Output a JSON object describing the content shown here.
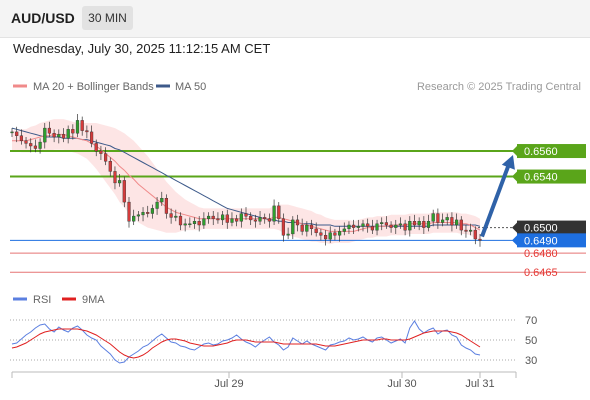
{
  "header": {
    "pair": "AUD/USD",
    "timeframe": "30 MIN"
  },
  "datetime": "Wednesday, July 30, 2025 11:12:15 AM CET",
  "legend": {
    "ma20_label": "MA 20 + Bollinger Bands",
    "ma50_label": "MA 50",
    "copyright": "Research © 2025 Trading Central",
    "rsi_label": "RSI",
    "rsi_ma_label": "9MA"
  },
  "colors": {
    "ma20": "#f08a8a",
    "ma50": "#3d5a8a",
    "band": "#fde0e0",
    "up": "#2e9e2e",
    "down": "#d43b3b",
    "resistance": "#5aa51a",
    "support": "#e57373",
    "current": "#1e6fe0",
    "arrow": "#2f62a8",
    "rsi": "#5b7fe0",
    "rsi_ma": "#e02020"
  },
  "chart_data": [
    {
      "type": "line",
      "x_ticks": [
        "Jul 29",
        "Jul 30",
        "Jul 31"
      ],
      "ylim": [
        0.6455,
        0.66
      ],
      "price_levels": [
        {
          "value": 0.656,
          "label": "0.6560",
          "kind": "resistance"
        },
        {
          "value": 0.654,
          "label": "0.6540",
          "kind": "resistance"
        },
        {
          "value": 0.65,
          "label": "0.6500",
          "kind": "last"
        },
        {
          "value": 0.649,
          "label": "0.6490",
          "kind": "current"
        },
        {
          "value": 0.648,
          "label": "0.6480",
          "kind": "support"
        },
        {
          "value": 0.6465,
          "label": "0.6465",
          "kind": "support"
        }
      ],
      "series": [
        {
          "name": "price",
          "values": [
            0.6575,
            0.6572,
            0.6568,
            0.6566,
            0.6564,
            0.6562,
            0.6567,
            0.6578,
            0.6574,
            0.6571,
            0.6573,
            0.657,
            0.6577,
            0.6574,
            0.6584,
            0.6576,
            0.6575,
            0.6566,
            0.656,
            0.6558,
            0.6552,
            0.6544,
            0.6535,
            0.6537,
            0.652,
            0.6505,
            0.6509,
            0.651,
            0.6512,
            0.6511,
            0.6515,
            0.652,
            0.6523,
            0.6511,
            0.6508,
            0.6509,
            0.6502,
            0.6503,
            0.6503,
            0.6505,
            0.6502,
            0.6507,
            0.6509,
            0.6507,
            0.6506,
            0.651,
            0.6504,
            0.6507,
            0.6505,
            0.6511,
            0.6509,
            0.6506,
            0.6505,
            0.6508,
            0.6507,
            0.6505,
            0.6517,
            0.6507,
            0.6494,
            0.6495,
            0.6506,
            0.6502,
            0.6497,
            0.6502,
            0.6499,
            0.6496,
            0.6494,
            0.6491,
            0.6496,
            0.6494,
            0.6497,
            0.6499,
            0.6502,
            0.65,
            0.6501,
            0.6503,
            0.6501,
            0.6498,
            0.6503,
            0.6504,
            0.6502,
            0.65,
            0.6502,
            0.6503,
            0.6498,
            0.6505,
            0.6502,
            0.6505,
            0.65,
            0.6505,
            0.6511,
            0.6504,
            0.6506,
            0.6508,
            0.6502,
            0.6506,
            0.6498,
            0.6497,
            0.6498,
            0.6491,
            0.649
          ]
        },
        {
          "name": "MA 20",
          "values": [
            0.6568,
            0.6568,
            0.6568,
            0.6568,
            0.6569,
            0.657,
            0.6571,
            0.6572,
            0.6572,
            0.6573,
            0.6573,
            0.6573,
            0.6572,
            0.6571,
            0.657,
            0.6569,
            0.6568,
            0.6566,
            0.6564,
            0.6561,
            0.6558,
            0.6555,
            0.6552,
            0.6548,
            0.6545,
            0.6541,
            0.6538,
            0.6534,
            0.6531,
            0.6528,
            0.6525,
            0.6522,
            0.6519,
            0.6516,
            0.6514,
            0.6512,
            0.6511,
            0.651,
            0.6509,
            0.6508,
            0.6507,
            0.6507,
            0.6507,
            0.6507,
            0.6507,
            0.6507,
            0.6507,
            0.6507,
            0.6507,
            0.6507,
            0.6507,
            0.6507,
            0.6507,
            0.6507,
            0.6507,
            0.6507,
            0.6508,
            0.6508,
            0.6507,
            0.6506,
            0.6505,
            0.6504,
            0.6503,
            0.6502,
            0.6501,
            0.65,
            0.6499,
            0.6498,
            0.6497,
            0.6497,
            0.6497,
            0.6497,
            0.6497,
            0.6497,
            0.6498,
            0.6499,
            0.65,
            0.65,
            0.6501,
            0.6501,
            0.6501,
            0.6502,
            0.6502,
            0.6502,
            0.6502,
            0.6503,
            0.6503,
            0.6503,
            0.6503,
            0.6503,
            0.6504,
            0.6504,
            0.6504,
            0.6504,
            0.6504,
            0.6504,
            0.6503,
            0.6503,
            0.6502,
            0.65,
            0.6498
          ]
        },
        {
          "name": "MA 50",
          "values": [
            0.6578,
            0.6577,
            0.6576,
            0.6575,
            0.6574,
            0.6573,
            0.6572,
            0.6571,
            0.6571,
            0.6571,
            0.6571,
            0.657,
            0.657,
            0.657,
            0.657,
            0.6569,
            0.6569,
            0.6568,
            0.6567,
            0.6566,
            0.6565,
            0.6564,
            0.6562,
            0.6561,
            0.6559,
            0.6557,
            0.6555,
            0.6553,
            0.6551,
            0.6549,
            0.6547,
            0.6545,
            0.6543,
            0.6541,
            0.6539,
            0.6537,
            0.6535,
            0.6533,
            0.6531,
            0.6529,
            0.6527,
            0.6525,
            0.6523,
            0.6521,
            0.6519,
            0.6517,
            0.6515,
            0.6514,
            0.6513,
            0.6512,
            0.6511,
            0.651,
            0.6509,
            0.6508,
            0.6507,
            0.6506,
            0.6506,
            0.6505,
            0.6505,
            0.6504,
            0.6504,
            0.6504,
            0.6503,
            0.6503,
            0.6503,
            0.6502,
            0.6502,
            0.6502,
            0.6502,
            0.6501,
            0.6501,
            0.6501,
            0.6501,
            0.6501,
            0.6501,
            0.6501,
            0.6501,
            0.6501,
            0.6501,
            0.6501,
            0.6501,
            0.6501,
            0.6501,
            0.6501,
            0.6501,
            0.6501,
            0.6501,
            0.6501,
            0.6501,
            0.6501,
            0.6502,
            0.6502,
            0.6502,
            0.6502,
            0.6502,
            0.6502,
            0.6502,
            0.6502,
            0.6502,
            0.6502,
            0.6501
          ]
        }
      ],
      "bollinger_halfwidth": [
        0.0008,
        0.0008,
        0.0009,
        0.0009,
        0.001,
        0.001,
        0.0011,
        0.0011,
        0.0012,
        0.0012,
        0.0012,
        0.0012,
        0.0012,
        0.0012,
        0.0012,
        0.0013,
        0.0014,
        0.0016,
        0.0018,
        0.002,
        0.0022,
        0.0024,
        0.0026,
        0.0028,
        0.0029,
        0.003,
        0.003,
        0.003,
        0.0029,
        0.0028,
        0.0026,
        0.0024,
        0.0022,
        0.002,
        0.0018,
        0.0016,
        0.0014,
        0.0012,
        0.0011,
        0.001,
        0.0009,
        0.0008,
        0.0008,
        0.0008,
        0.0008,
        0.0008,
        0.0008,
        0.0008,
        0.0008,
        0.0008,
        0.0008,
        0.0008,
        0.0008,
        0.0008,
        0.0008,
        0.0008,
        0.0009,
        0.001,
        0.0011,
        0.0012,
        0.0012,
        0.0012,
        0.0012,
        0.0012,
        0.0012,
        0.0011,
        0.0011,
        0.001,
        0.001,
        0.0009,
        0.0009,
        0.0009,
        0.0009,
        0.0008,
        0.0008,
        0.0008,
        0.0008,
        0.0008,
        0.0008,
        0.0008,
        0.0008,
        0.0008,
        0.0008,
        0.0008,
        0.0008,
        0.0008,
        0.0008,
        0.0008,
        0.0008,
        0.0008,
        0.0008,
        0.0008,
        0.0008,
        0.0008,
        0.0008,
        0.0008,
        0.0008,
        0.0008,
        0.0008,
        0.0009,
        0.0009
      ],
      "forecast_arrow": {
        "from": 0.6493,
        "to": 0.656
      }
    },
    {
      "type": "line",
      "ylim": [
        22,
        80
      ],
      "y_ticks": [
        70,
        50,
        30
      ],
      "series": [
        {
          "name": "RSI",
          "values": [
            46,
            47,
            51,
            55,
            58,
            62,
            65,
            66,
            61,
            58,
            63,
            60,
            58,
            62,
            64,
            60,
            55,
            52,
            50,
            44,
            40,
            36,
            30,
            27,
            28,
            33,
            36,
            39,
            43,
            45,
            49,
            53,
            56,
            52,
            48,
            47,
            44,
            43,
            41,
            40,
            43,
            46,
            47,
            45,
            46,
            49,
            50,
            52,
            55,
            51,
            48,
            46,
            43,
            47,
            50,
            53,
            48,
            45,
            40,
            43,
            52,
            49,
            46,
            49,
            46,
            44,
            42,
            40,
            45,
            46,
            48,
            49,
            52,
            50,
            51,
            53,
            50,
            48,
            52,
            53,
            50,
            47,
            49,
            51,
            47,
            62,
            69,
            61,
            57,
            60,
            62,
            56,
            59,
            60,
            55,
            53,
            45,
            42,
            40,
            36,
            35
          ]
        },
        {
          "name": "9MA",
          "values": [
            42,
            43,
            45,
            47,
            50,
            53,
            56,
            58,
            59,
            60,
            61,
            61,
            61,
            61,
            61,
            60,
            59,
            57,
            55,
            52,
            49,
            46,
            42,
            38,
            35,
            33,
            32,
            33,
            35,
            38,
            42,
            45,
            48,
            50,
            51,
            51,
            50,
            49,
            47,
            46,
            45,
            44,
            44,
            44,
            45,
            46,
            47,
            49,
            50,
            50,
            50,
            49,
            48,
            48,
            48,
            48,
            48,
            47,
            46,
            46,
            46,
            46,
            46,
            46,
            46,
            46,
            45,
            44,
            44,
            44,
            45,
            46,
            47,
            48,
            49,
            50,
            50,
            50,
            50,
            51,
            51,
            50,
            50,
            50,
            50,
            51,
            53,
            55,
            57,
            58,
            59,
            59,
            59,
            59,
            58,
            57,
            55,
            52,
            49,
            46,
            43
          ]
        }
      ]
    }
  ]
}
